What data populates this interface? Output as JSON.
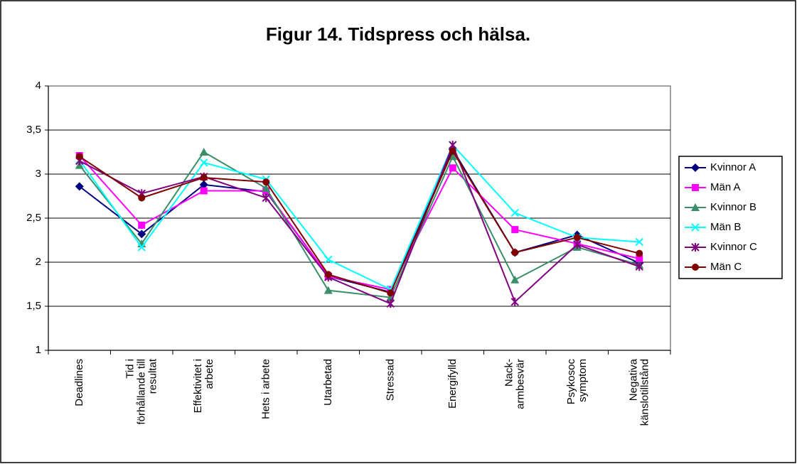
{
  "chart_data": {
    "type": "line",
    "title": "Figur 14. Tidspress och hälsa.",
    "categories": [
      "Deadlines",
      "Tid i\nförhållande till\nresultat",
      "Effektivitet i\narbete",
      "Hets i arbete",
      "Utarbetad",
      "Stressad",
      "Energifylld",
      "Nack-\narmbesvär",
      "Psykosoc\nsymptom",
      "Negativa\nkänslotillstånd"
    ],
    "series": [
      {
        "name": "Kvinnor A",
        "color": "#000080",
        "marker": "diamond",
        "values": [
          2.86,
          2.32,
          2.88,
          2.8,
          1.84,
          1.66,
          3.28,
          2.11,
          2.31,
          1.99
        ]
      },
      {
        "name": "Män A",
        "color": "#ff00ff",
        "marker": "square",
        "values": [
          3.21,
          2.42,
          2.81,
          2.81,
          1.84,
          1.69,
          3.07,
          2.37,
          2.21,
          2.04
        ]
      },
      {
        "name": "Kvinnor B",
        "color": "#3a8f68",
        "marker": "triangle",
        "values": [
          3.1,
          2.21,
          3.25,
          2.84,
          1.68,
          1.6,
          3.2,
          1.8,
          2.17,
          1.97
        ]
      },
      {
        "name": "Män B",
        "color": "#00ffff",
        "marker": "x",
        "values": [
          3.16,
          2.17,
          3.13,
          2.94,
          2.03,
          1.69,
          3.33,
          2.56,
          2.28,
          2.23
        ]
      },
      {
        "name": "Kvinnor C",
        "color": "#800080",
        "marker": "star",
        "values": [
          3.15,
          2.78,
          2.97,
          2.73,
          1.83,
          1.53,
          3.33,
          1.55,
          2.2,
          1.95
        ]
      },
      {
        "name": "Män C",
        "color": "#800000",
        "marker": "circle",
        "values": [
          3.2,
          2.73,
          2.96,
          2.91,
          1.86,
          1.65,
          3.26,
          2.11,
          2.28,
          2.1
        ]
      }
    ],
    "ylim": [
      1,
      4
    ],
    "yticks": [
      1,
      {
        "value": 1.5,
        "label": "1,5"
      },
      2,
      {
        "value": 2.5,
        "label": "2,5"
      },
      3,
      {
        "value": 3.5,
        "label": "3,5"
      },
      4
    ],
    "grid": true,
    "legend": "right"
  }
}
